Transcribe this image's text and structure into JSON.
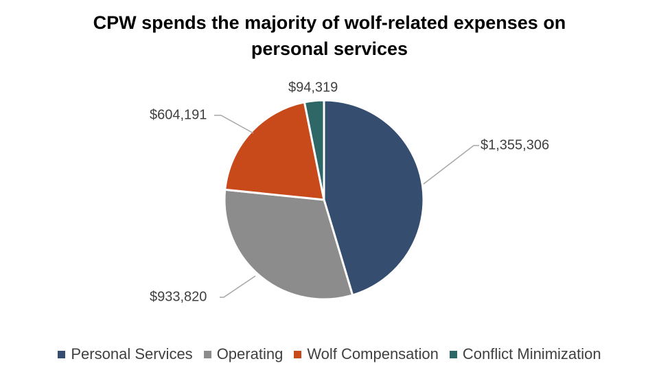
{
  "chart_data": {
    "type": "pie",
    "title": "CPW spends the majority of wolf-related expenses on personal services",
    "categories": [
      "Personal Services",
      "Operating",
      "Wolf Compensation",
      "Conflict Minimization"
    ],
    "values": [
      1355306,
      933820,
      604191,
      94319
    ],
    "data_labels": [
      "$1,355,306",
      "$933,820",
      "$604,191",
      "$94,319"
    ],
    "colors": [
      "#354d6e",
      "#8c8c8c",
      "#c84a1a",
      "#2f6666"
    ],
    "legend_position": "bottom",
    "start_angle_deg": 0,
    "direction": "clockwise"
  }
}
